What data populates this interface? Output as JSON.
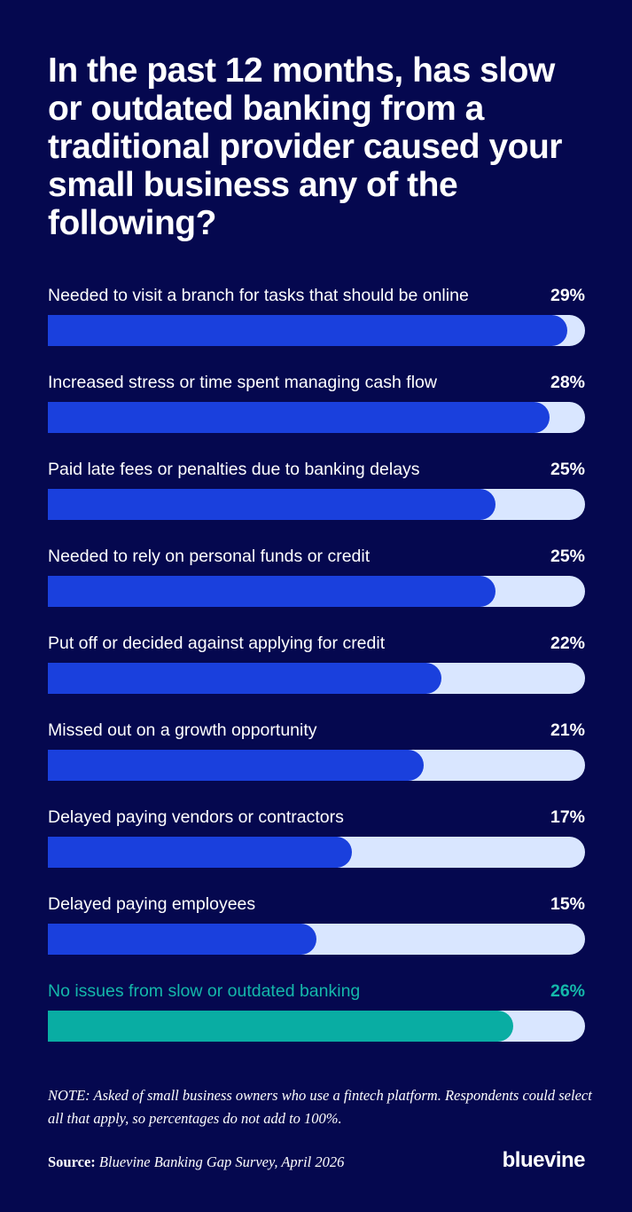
{
  "chart_data": {
    "type": "bar",
    "orientation": "horizontal",
    "title": "In the past 12 months, has slow or outdated banking from a traditional provider caused your small business any of the following?",
    "categories": [
      "Needed to visit a branch for tasks that should be online",
      "Increased stress or time spent managing cash flow",
      "Paid late fees or penalties due to banking delays",
      "Needed to rely on personal funds or credit",
      "Put off or decided against applying for credit",
      "Missed out on a growth opportunity",
      "Delayed paying vendors or contractors",
      "Delayed paying employees",
      "No issues from slow or outdated banking"
    ],
    "values": [
      29,
      28,
      25,
      25,
      22,
      21,
      17,
      15,
      26
    ],
    "value_labels": [
      "29%",
      "28%",
      "25%",
      "25%",
      "22%",
      "21%",
      "17%",
      "15%",
      "26%"
    ],
    "highlighted_category": "No issues from slow or outdated banking",
    "xlim": [
      0,
      30
    ],
    "grid": false,
    "colors": {
      "background": "#05084f",
      "bar": "#1a40dd",
      "track": "#d9e6ff",
      "highlight": "#09ada3",
      "highlight_text": "#14b8aa"
    }
  },
  "note": "NOTE: Asked of small business owners who use a fintech platform. Respondents could select all that apply, so percentages do not add to 100%.",
  "source": {
    "label": "Source",
    "separator": ": ",
    "text": "Bluevine Banking Gap Survey, April 2026"
  },
  "brand": {
    "logo_text": "bluevine"
  }
}
